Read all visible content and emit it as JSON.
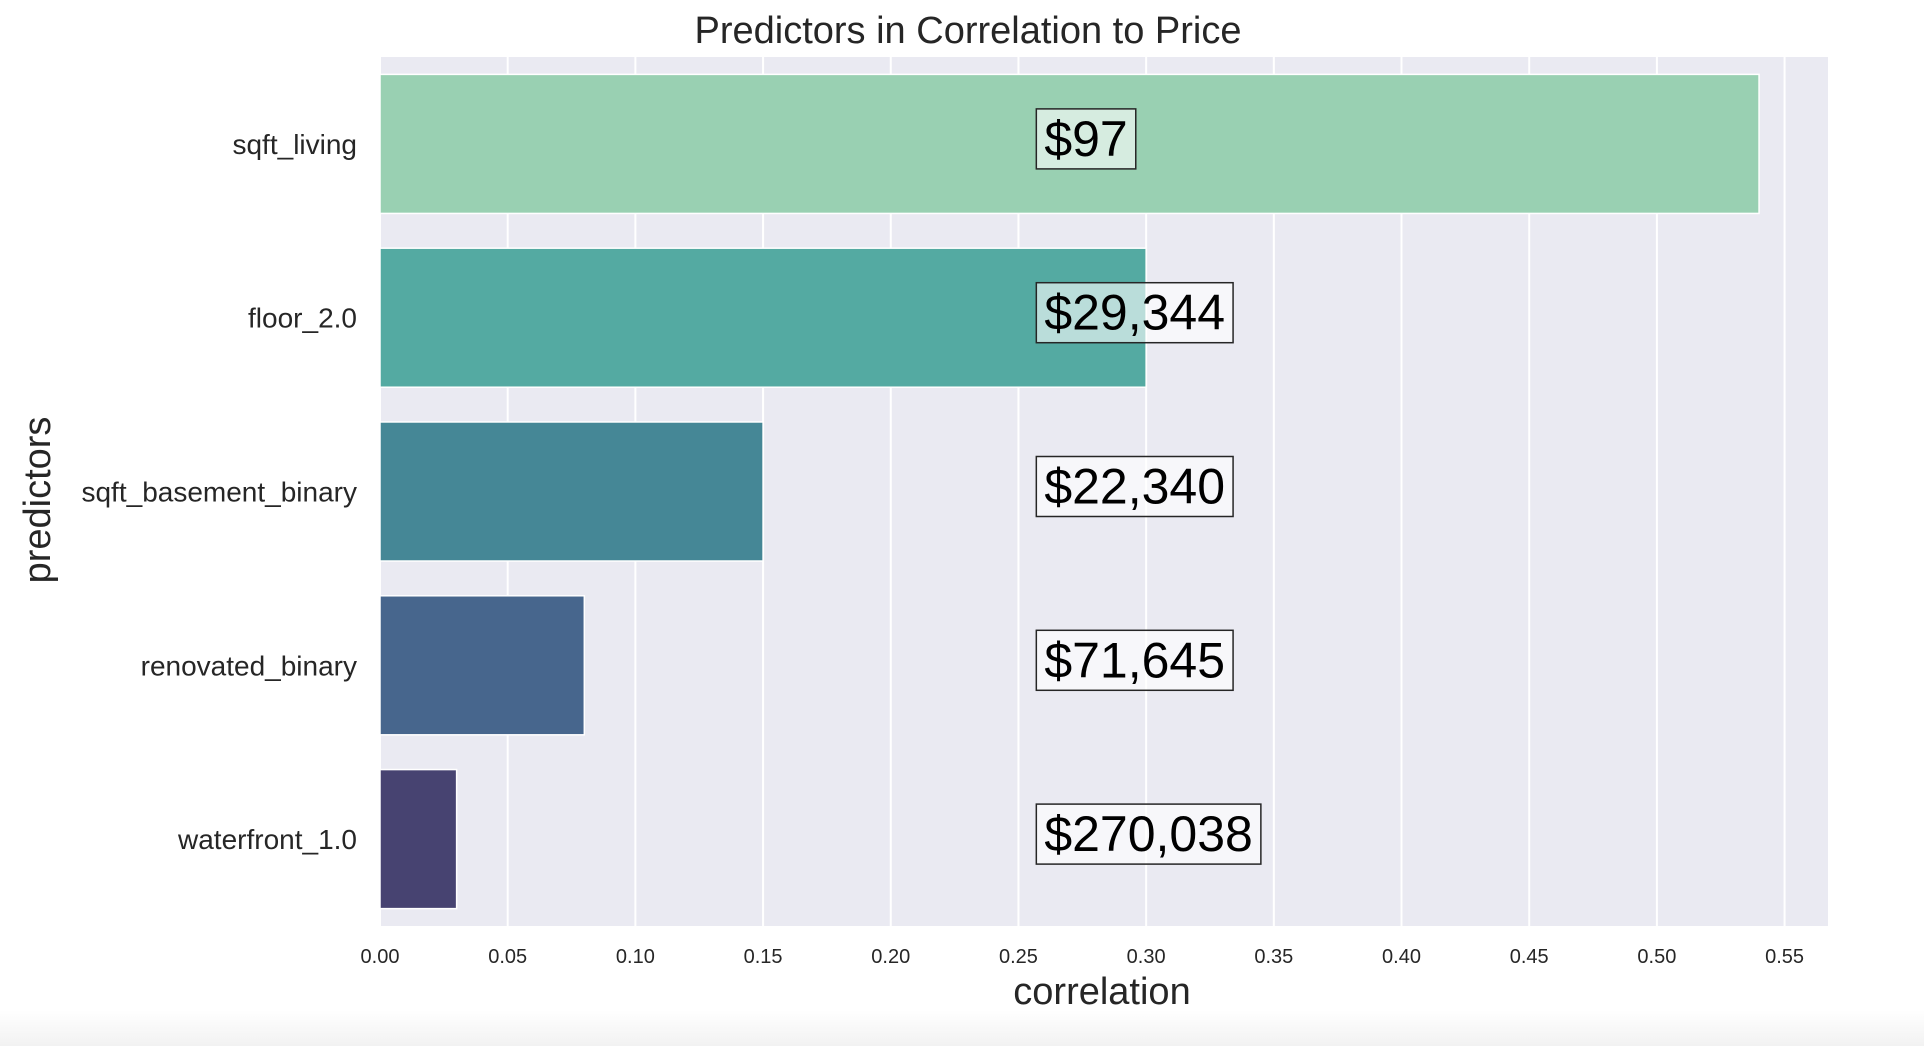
{
  "colors": {
    "plot_background": "#eaeaf2",
    "grid": "#ffffff",
    "text": "#262626",
    "bars": [
      "#99d0b2",
      "#54aaa2",
      "#458796",
      "#47668d",
      "#474371"
    ],
    "annotation_box_fill": "#ffffff",
    "annotation_box_stroke": "#262626"
  },
  "chart_data": {
    "type": "bar",
    "orientation": "horizontal",
    "title": "Predictors in Correlation to Price",
    "xlabel": "correlation",
    "ylabel": "predictors",
    "categories": [
      "sqft_living",
      "floor_2.0",
      "sqft_basement_binary",
      "renovated_binary",
      "waterfront_1.0"
    ],
    "values": [
      0.54,
      0.3,
      0.15,
      0.08,
      0.03
    ],
    "annotations": [
      "$97",
      "$29,344",
      "$22,340",
      "$71,645",
      "$270,038"
    ],
    "annotation_x": 0.257,
    "xlim": [
      0,
      0.567
    ],
    "xticks": [
      0.0,
      0.05,
      0.1,
      0.15,
      0.2,
      0.25,
      0.3,
      0.35,
      0.4,
      0.45,
      0.5,
      0.55
    ],
    "xtick_labels": [
      "0.00",
      "0.05",
      "0.10",
      "0.15",
      "0.20",
      "0.25",
      "0.30",
      "0.35",
      "0.40",
      "0.45",
      "0.50",
      "0.55"
    ],
    "grid": "vertical",
    "legend": "none"
  }
}
